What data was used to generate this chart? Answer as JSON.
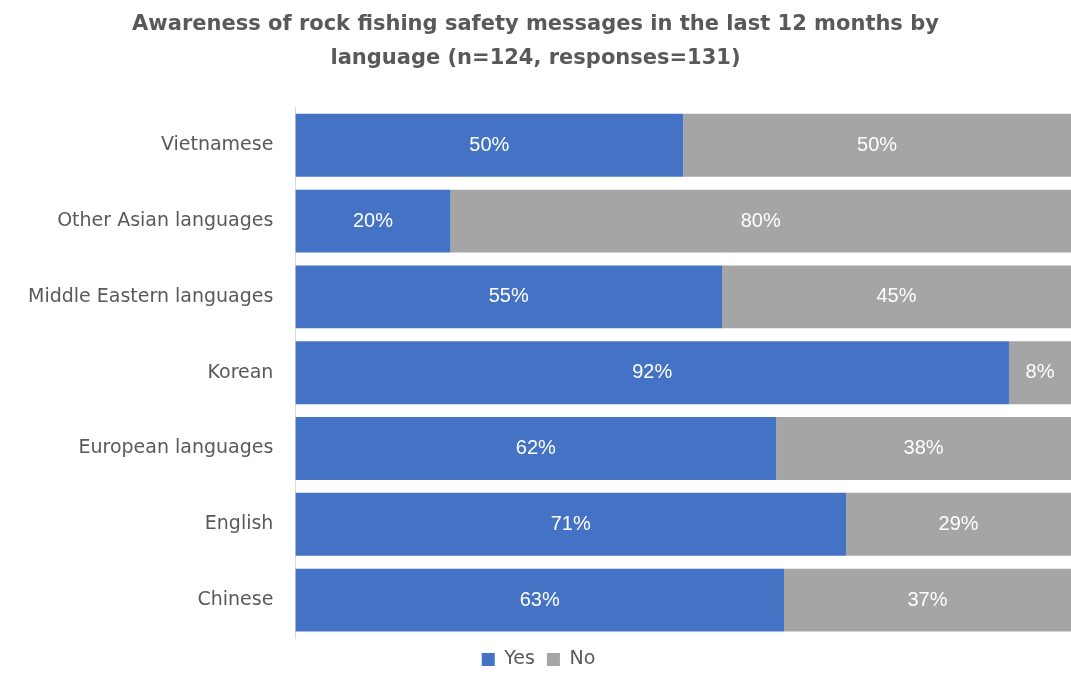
{
  "chart_data": {
    "type": "bar",
    "orientation": "horizontal",
    "stacked": true,
    "title": "Awareness of rock fishing safety messages in the last 12 months by language (n=124, responses=131)",
    "categories": [
      "Vietnamese",
      "Other Asian languages",
      "Middle Eastern languages",
      "Korean",
      "European languages",
      "English",
      "Chinese"
    ],
    "xlim": [
      0,
      100
    ],
    "tick_labels": "y",
    "grid": false,
    "legend": "bottom",
    "series": [
      {
        "name": "Yes",
        "color": "#4472c4",
        "values": [
          50,
          20,
          55,
          92,
          62,
          71,
          63
        ],
        "value_labels": [
          "50%",
          "20%",
          "55%",
          "92%",
          "62%",
          "71%",
          "63%"
        ]
      },
      {
        "name": "No",
        "color": "#a5a5a5",
        "values": [
          50,
          80,
          45,
          8,
          38,
          29,
          37
        ],
        "value_labels": [
          "50%",
          "80%",
          "45%",
          "8%",
          "38%",
          "29%",
          "37%"
        ]
      }
    ]
  }
}
